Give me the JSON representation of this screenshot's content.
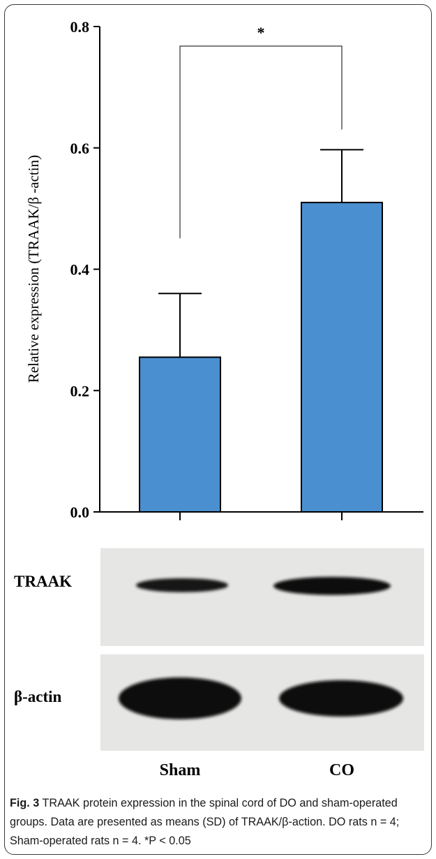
{
  "chart_data": {
    "type": "bar",
    "categories": [
      "Sham",
      "CO"
    ],
    "values": [
      0.255,
      0.51
    ],
    "error": [
      0.105,
      0.087
    ],
    "ylabel": "Relative expression (TRAAK/β -actin)",
    "ylim": [
      0,
      0.8
    ],
    "yticks": [
      "0.0",
      "0.2",
      "0.4",
      "0.6",
      "0.8"
    ],
    "bar_color": "#4a8fd0",
    "significance": "*",
    "grid": false
  },
  "blots": {
    "rows": [
      {
        "label": "TRAAK"
      },
      {
        "label": "β-actin"
      }
    ],
    "lanes": [
      "Sham",
      "CO"
    ]
  },
  "caption": {
    "fig": "Fig. 3",
    "text": " TRAAK protein expression in the spinal cord of DO and sham-operated groups. Data are presented as means (SD) of TRAAK/β-action. DO rats n = 4; Sham-operated rats n = 4. *P < 0.05"
  }
}
